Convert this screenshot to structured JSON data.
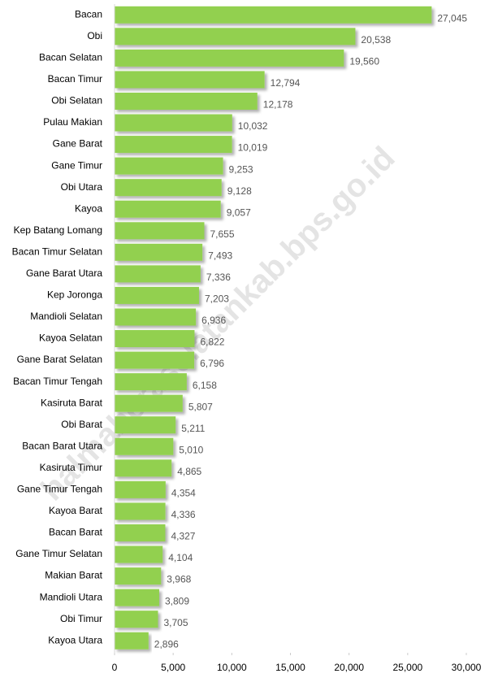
{
  "chart_data": {
    "type": "bar",
    "orientation": "horizontal",
    "watermark": "halmaheraselatankab.bps.go.id",
    "categories": [
      "Bacan",
      "Obi",
      "Bacan Selatan",
      "Bacan Timur",
      "Obi Selatan",
      "Pulau Makian",
      "Gane Barat",
      "Gane Timur",
      "Obi Utara",
      "Kayoa",
      "Kep Batang Lomang",
      "Bacan Timur Selatan",
      "Gane Barat Utara",
      "Kep Joronga",
      "Mandioli Selatan",
      "Kayoa Selatan",
      "Gane Barat Selatan",
      "Bacan Timur Tengah",
      "Kasiruta Barat",
      "Obi Barat",
      "Bacan Barat Utara",
      "Kasiruta Timur",
      "Gane Timur Tengah",
      "Kayoa Barat",
      "Bacan Barat",
      "Gane Timur Selatan",
      "Makian Barat",
      "Mandioli Utara",
      "Obi Timur",
      "Kayoa Utara"
    ],
    "values": [
      27045,
      20538,
      19560,
      12794,
      12178,
      10032,
      10019,
      9253,
      9128,
      9057,
      7655,
      7493,
      7336,
      7203,
      6936,
      6822,
      6796,
      6158,
      5807,
      5211,
      5010,
      4865,
      4354,
      4336,
      4327,
      4104,
      3968,
      3809,
      3705,
      2896
    ],
    "value_labels": [
      "27,045",
      "20,538",
      "19,560",
      "12,794",
      "12,178",
      "10,032",
      "10,019",
      "9,253",
      "9,128",
      "9,057",
      "7,655",
      "7,493",
      "7,336",
      "7,203",
      "6,936",
      "6,822",
      "6,796",
      "6,158",
      "5,807",
      "5,211",
      "5,010",
      "4,865",
      "4,354",
      "4,336",
      "4,327",
      "4,104",
      "3,968",
      "3,809",
      "3,705",
      "2,896"
    ],
    "color": "#92d050",
    "xlim": [
      0,
      30000
    ],
    "xticks": [
      0,
      {
        "value": 5000,
        "label": "5,000"
      },
      {
        "value": 10000,
        "label": "10,000"
      },
      {
        "value": 15000,
        "label": "15,000"
      },
      {
        "value": 20000,
        "label": "20,000"
      },
      {
        "value": 25000,
        "label": "25,000"
      },
      {
        "value": 30000,
        "label": "30,000"
      }
    ]
  }
}
